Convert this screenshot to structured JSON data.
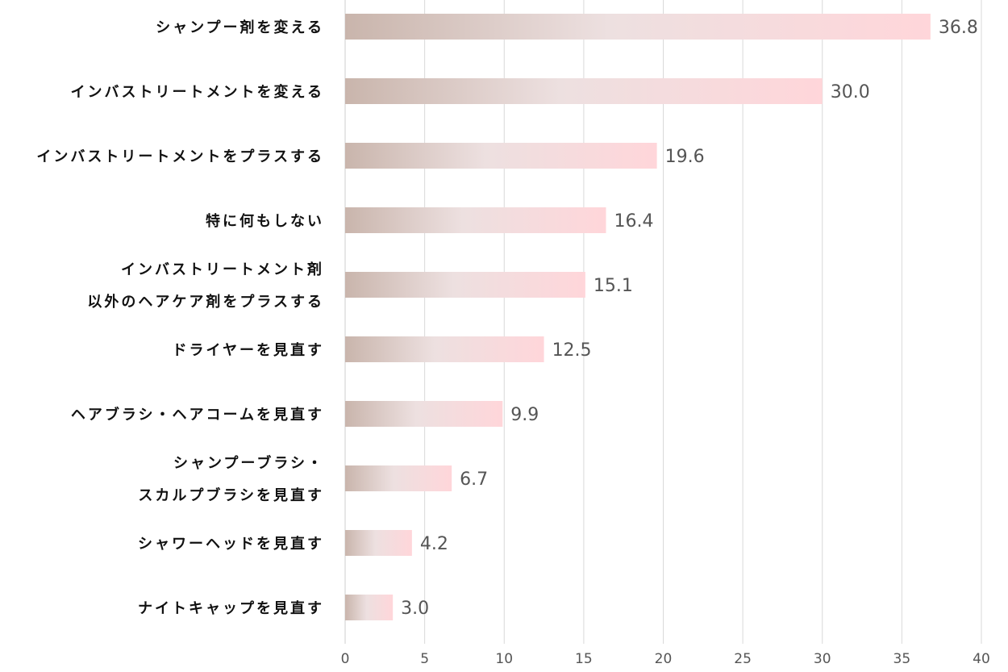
{
  "chart_data": {
    "type": "bar",
    "orientation": "horizontal",
    "categories": [
      [
        "シャンプー剤を変える"
      ],
      [
        "インバストリートメントを変える"
      ],
      [
        "インバストリートメントをプラスする"
      ],
      [
        "特に何もしない"
      ],
      [
        "インバストリートメント剤",
        "以外のヘアケア剤をプラスする"
      ],
      [
        "ドライヤーを見直す"
      ],
      [
        "ヘアブラシ・ヘアコームを見直す"
      ],
      [
        "シャンプーブラシ・",
        "スカルプブラシを見直す"
      ],
      [
        "シャワーヘッドを見直す"
      ],
      [
        "ナイトキャップを見直す"
      ]
    ],
    "values": [
      36.8,
      30.0,
      19.6,
      16.4,
      15.1,
      12.5,
      9.9,
      6.7,
      4.2,
      3.0
    ],
    "value_labels": [
      "36.8",
      "30.0",
      "19.6",
      "16.4",
      "15.1",
      "12.5",
      "9.9",
      "6.7",
      "4.2",
      "3.0"
    ],
    "xlim": [
      0,
      40
    ],
    "xticks": [
      0,
      5,
      10,
      15,
      20,
      25,
      30,
      35,
      40
    ],
    "grid": true,
    "title": "",
    "xlabel": "",
    "ylabel": "",
    "colors": {
      "bar_start": "#c9b5ac",
      "bar_mid": "#ede0e0",
      "bar_end": "#ffd6da"
    }
  }
}
